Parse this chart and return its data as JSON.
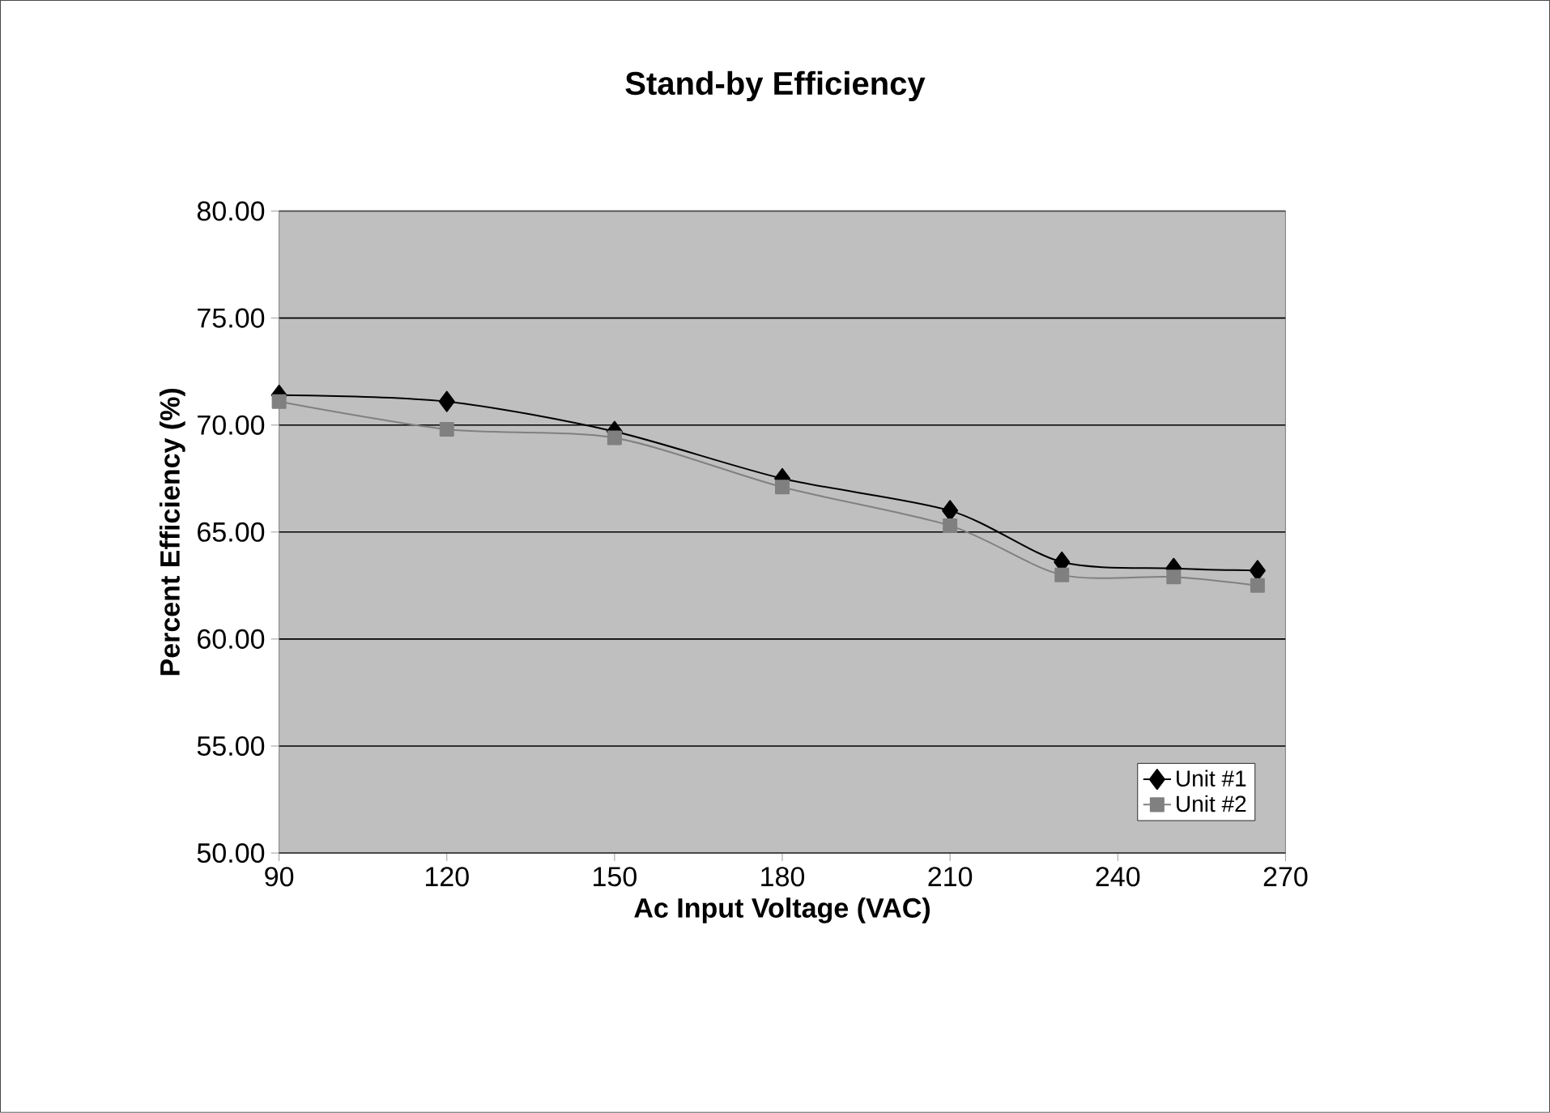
{
  "chart_data": {
    "type": "line",
    "title": "Stand-by Efficiency",
    "xlabel": "Ac Input Voltage (VAC)",
    "ylabel": "Percent Efficiency (%)",
    "x": [
      90,
      120,
      150,
      180,
      210,
      230,
      250,
      265
    ],
    "series": [
      {
        "name": "Unit #1",
        "color": "#000000",
        "marker": "diamond",
        "values": [
          71.4,
          71.1,
          69.7,
          67.5,
          66.0,
          63.6,
          63.3,
          63.2
        ]
      },
      {
        "name": "Unit #2",
        "color": "#808080",
        "marker": "square",
        "values": [
          71.1,
          69.8,
          69.4,
          67.1,
          65.3,
          63.0,
          62.9,
          62.5
        ]
      }
    ],
    "xlim": [
      90,
      270
    ],
    "xticks": [
      90,
      120,
      150,
      180,
      210,
      240,
      270
    ],
    "ylim": [
      50,
      80
    ],
    "yticks": [
      {
        "value": 50,
        "label": "50.00"
      },
      {
        "value": 55,
        "label": "55.00"
      },
      {
        "value": 60,
        "label": "60.00"
      },
      {
        "value": 65,
        "label": "65.00"
      },
      {
        "value": 70,
        "label": "70.00"
      },
      {
        "value": 75,
        "label": "75.00"
      },
      {
        "value": 80,
        "label": "80.00"
      }
    ],
    "grid": "y",
    "legend": "bottom right"
  }
}
